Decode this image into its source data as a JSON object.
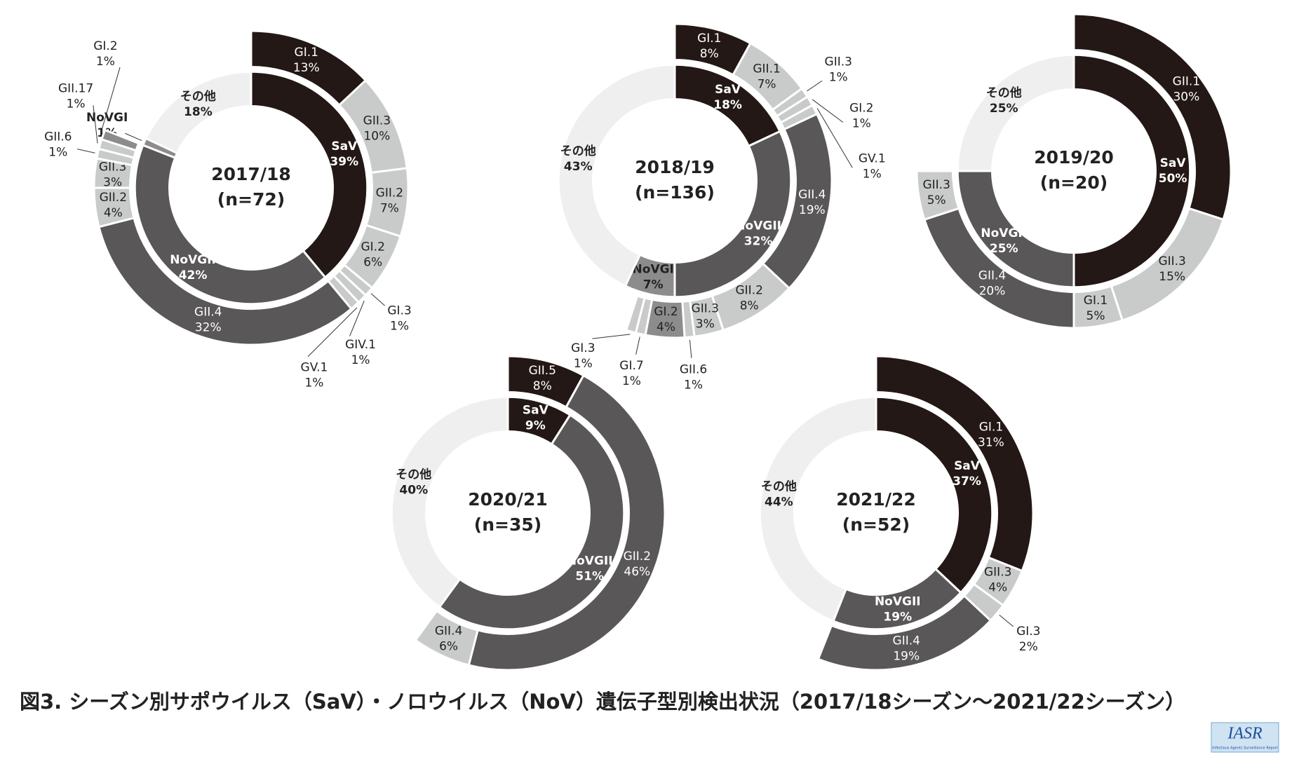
{
  "chart_data": [
    {
      "type": "pie",
      "title": "2017/18",
      "subtitle": "(n=72)",
      "rings": [
        {
          "categories": [
            "SaV",
            "NoVGII",
            "NoVGI",
            "その他"
          ],
          "values": [
            39,
            42,
            1,
            18
          ],
          "value_labels": [
            "39%",
            "42%",
            "1%",
            "18%"
          ],
          "colors": [
            "#231815",
            "#595757",
            "#8c8c8c",
            "#efefef"
          ]
        },
        {
          "categories": [
            "GI.1",
            "GII.3",
            "GII.2",
            "GI.2",
            "GI.3",
            "GIV.1",
            "GV.1",
            "GII.4",
            "GII.2",
            "GII.3",
            "GII.6",
            "GII.17",
            "GI.2"
          ],
          "values": [
            13,
            10,
            7,
            6,
            1,
            1,
            1,
            32,
            4,
            3,
            1,
            1,
            1
          ],
          "value_labels": [
            "13%",
            "10%",
            "7%",
            "6%",
            "1%",
            "1%",
            "1%",
            "32%",
            "4%",
            "3%",
            "1%",
            "1%",
            "1%"
          ],
          "colors": [
            "#231815",
            "#c9caca",
            "#c9caca",
            "#c9caca",
            "#c9caca",
            "#c9caca",
            "#c9caca",
            "#595757",
            "#c9caca",
            "#c9caca",
            "#c9caca",
            "#c9caca",
            "#8c8c8c"
          ]
        }
      ]
    },
    {
      "type": "pie",
      "title": "2018/19",
      "subtitle": "(n=136)",
      "rings": [
        {
          "categories": [
            "SaV",
            "NoVGII",
            "NoVGI",
            "その他"
          ],
          "values": [
            18,
            32,
            7,
            43
          ],
          "value_labels": [
            "18%",
            "32%",
            "7%",
            "43%"
          ],
          "colors": [
            "#231815",
            "#595757",
            "#8c8c8c",
            "#efefef"
          ]
        },
        {
          "categories": [
            "GI.1",
            "GII.1",
            "GII.3",
            "GI.2",
            "GV.1",
            "GII.4",
            "GII.2",
            "GII.3",
            "GII.6",
            "GI.2",
            "GI.7",
            "GI.3"
          ],
          "values": [
            8,
            7,
            1,
            1,
            1,
            19,
            8,
            3,
            1,
            4,
            1,
            1
          ],
          "value_labels": [
            "8%",
            "7%",
            "1%",
            "1%",
            "1%",
            "19%",
            "8%",
            "3%",
            "1%",
            "4%",
            "1%",
            "1%"
          ],
          "colors": [
            "#231815",
            "#c9caca",
            "#c9caca",
            "#c9caca",
            "#c9caca",
            "#595757",
            "#c9caca",
            "#c9caca",
            "#c9caca",
            "#8c8c8c",
            "#c9caca",
            "#c9caca"
          ]
        }
      ]
    },
    {
      "type": "pie",
      "title": "2019/20",
      "subtitle": "(n=20)",
      "rings": [
        {
          "categories": [
            "SaV",
            "NoVGII",
            "その他"
          ],
          "values": [
            50,
            25,
            25
          ],
          "value_labels": [
            "50%",
            "25%",
            "25%"
          ],
          "colors": [
            "#231815",
            "#595757",
            "#efefef"
          ]
        },
        {
          "categories": [
            "GII.1",
            "GII.3",
            "GI.1",
            "GII.4",
            "GII.3"
          ],
          "values": [
            30,
            15,
            5,
            20,
            5
          ],
          "value_labels": [
            "30%",
            "15%",
            "5%",
            "20%",
            "5%"
          ],
          "colors": [
            "#231815",
            "#c9caca",
            "#c9caca",
            "#595757",
            "#c9caca"
          ]
        }
      ]
    },
    {
      "type": "pie",
      "title": "2020/21",
      "subtitle": "(n=35)",
      "rings": [
        {
          "categories": [
            "SaV",
            "NoVGII",
            "その他"
          ],
          "values": [
            9,
            51,
            40
          ],
          "value_labels": [
            "9%",
            "51%",
            "40%"
          ],
          "colors": [
            "#231815",
            "#595757",
            "#efefef"
          ]
        },
        {
          "categories": [
            "GII.5",
            "GII.2",
            "GII.4"
          ],
          "values": [
            8,
            46,
            6
          ],
          "value_labels": [
            "8%",
            "46%",
            "6%"
          ],
          "colors": [
            "#231815",
            "#595757",
            "#c9caca"
          ]
        }
      ]
    },
    {
      "type": "pie",
      "title": "2021/22",
      "subtitle": "(n=52)",
      "rings": [
        {
          "categories": [
            "SaV",
            "NoVGII",
            "その他"
          ],
          "values": [
            37,
            19,
            44
          ],
          "value_labels": [
            "37%",
            "19%",
            "44%"
          ],
          "colors": [
            "#231815",
            "#595757",
            "#efefef"
          ]
        },
        {
          "categories": [
            "GI.1",
            "GII.3",
            "GI.3",
            "GII.4"
          ],
          "values": [
            31,
            4,
            2,
            19
          ],
          "value_labels": [
            "31%",
            "4%",
            "2%",
            "19%"
          ],
          "colors": [
            "#231815",
            "#c9caca",
            "#c9caca",
            "#595757"
          ]
        }
      ]
    }
  ],
  "caption": "図3. シーズン別サポウイルス（SaV）・ノロウイルス（NoV）遺伝子型別検出状況（2017/18シーズン〜2021/22シーズン）",
  "logo": {
    "title": "IASR",
    "subtitle": "Infectious Agents Surveillance Report"
  }
}
